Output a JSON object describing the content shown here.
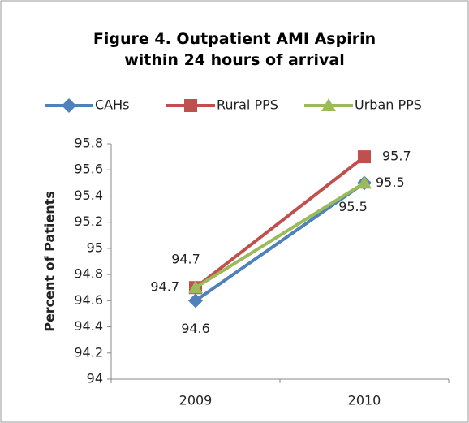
{
  "chart_data": {
    "type": "line",
    "title": "Figure 4. Outpatient AMI Aspirin within 24 hours of arrival",
    "y_label": "Percent of  Patients",
    "categories": [
      "2009",
      "2010"
    ],
    "series": [
      {
        "name": "CAHs",
        "color": "#4f81bd",
        "marker": "diamond",
        "values": [
          94.6,
          95.5
        ]
      },
      {
        "name": "Rural PPS",
        "color": "#c0504d",
        "marker": "square",
        "values": [
          94.7,
          95.7
        ]
      },
      {
        "name": "Urban PPS",
        "color": "#9bbb59",
        "marker": "triangle",
        "values": [
          94.7,
          95.5
        ]
      }
    ],
    "ylim": [
      94,
      95.8
    ],
    "yticks": [
      94,
      94.2,
      94.4,
      94.6,
      94.8,
      95,
      95.2,
      95.4,
      95.6,
      95.8
    ],
    "legend": "top"
  }
}
